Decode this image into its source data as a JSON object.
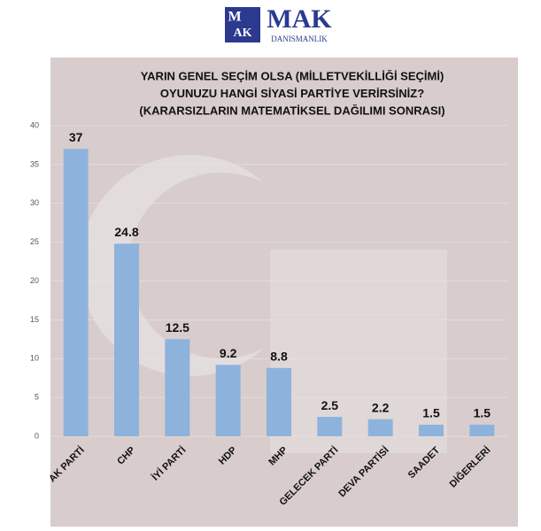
{
  "logo": {
    "mark_top": "M",
    "mark_bottom": "AK",
    "name": "MAK",
    "subtitle": "DANISMANLIK"
  },
  "chart_data": {
    "type": "bar",
    "title_lines": [
      "YARIN GENEL SEÇİM OLSA (MİLLETVEKİLLİĞİ SEÇİMİ)",
      "OYUNUZU HANGİ SİYASİ PARTİYE VERİRSİNİZ?",
      "(KARARSIZLARIN MATEMATİKSEL DAĞILIMI SONRASI)"
    ],
    "categories": [
      "AK PARTİ",
      "CHP",
      "İYİ PARTİ",
      "HDP",
      "MHP",
      "GELECEK PARTİ",
      "DEVA PARTİSİ",
      "SAADET",
      "DİĞERLERİ"
    ],
    "values": [
      37,
      24.8,
      12.5,
      9.2,
      8.8,
      2.5,
      2.2,
      1.5,
      1.5
    ],
    "color": "#8db3dd",
    "ylim": [
      0,
      40
    ],
    "yticks": [
      0,
      5,
      10,
      15,
      20,
      25,
      30,
      35,
      40
    ],
    "grid": true
  }
}
